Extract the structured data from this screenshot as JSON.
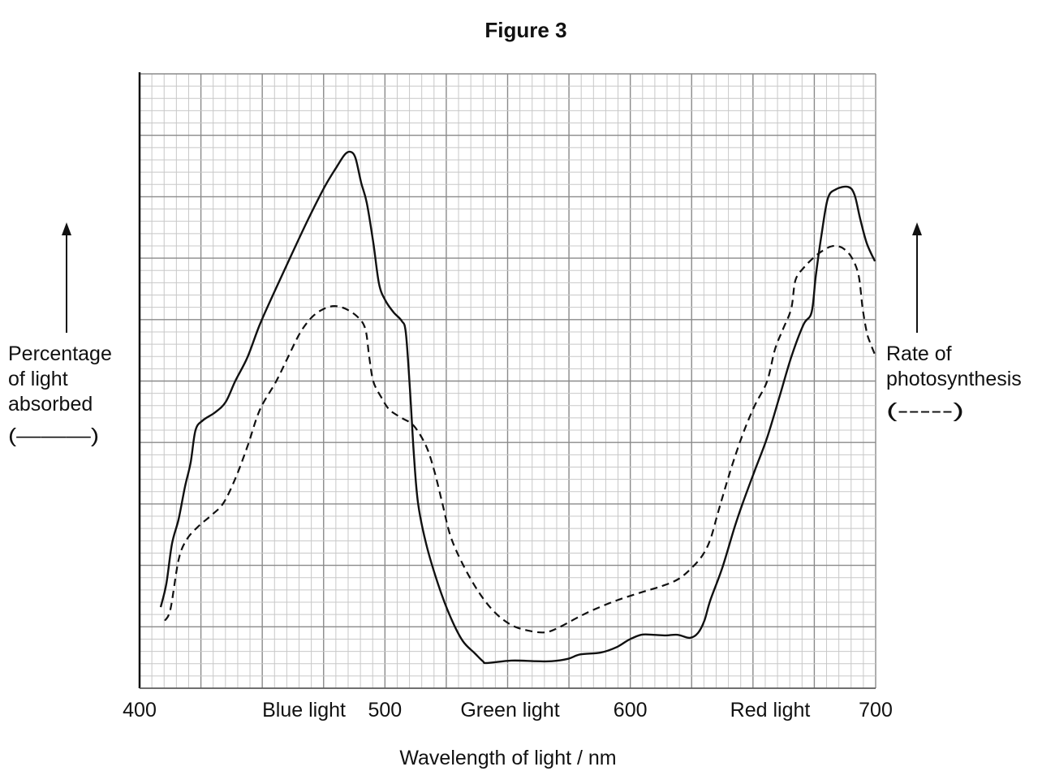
{
  "chart_data": {
    "type": "line",
    "title": "Figure 3",
    "xlabel": "Wavelength of light / nm",
    "xlim": [
      400,
      700
    ],
    "x_ticks": [
      "400",
      "500",
      "600",
      "700"
    ],
    "x_tick_values": [
      400,
      500,
      600,
      700
    ],
    "x_region_labels": [
      {
        "label": "Blue light",
        "x": 467
      },
      {
        "label": "Green light",
        "x": 551
      },
      {
        "label": "Red light",
        "x": 657
      }
    ],
    "ylim": [
      0,
      10
    ],
    "y_units": "grid divisions (no y values printed)",
    "grid": true,
    "left_axis_label": [
      "Percentage",
      "of light",
      "absorbed",
      "(———)"
    ],
    "right_axis_label": [
      "Rate of",
      "photosynthesis",
      "(-----)"
    ],
    "series": [
      {
        "name": "Percentage of light absorbed",
        "style": "solid",
        "color": "#111111",
        "points": [
          [
            408.6,
            1.32
          ],
          [
            410.9,
            1.7
          ],
          [
            413.2,
            2.35
          ],
          [
            415.9,
            2.75
          ],
          [
            418.5,
            3.28
          ],
          [
            420.8,
            3.67
          ],
          [
            422.8,
            4.2
          ],
          [
            425.8,
            4.36
          ],
          [
            430.8,
            4.49
          ],
          [
            435.1,
            4.66
          ],
          [
            439.0,
            5.0
          ],
          [
            444.0,
            5.39
          ],
          [
            449.0,
            5.92
          ],
          [
            455.6,
            6.51
          ],
          [
            462.2,
            7.08
          ],
          [
            468.8,
            7.64
          ],
          [
            475.4,
            8.16
          ],
          [
            480.4,
            8.49
          ],
          [
            483.7,
            8.69
          ],
          [
            486.0,
            8.73
          ],
          [
            488.0,
            8.63
          ],
          [
            490.3,
            8.23
          ],
          [
            492.6,
            7.9
          ],
          [
            495.3,
            7.24
          ],
          [
            497.6,
            6.58
          ],
          [
            500.2,
            6.31
          ],
          [
            503.5,
            6.12
          ],
          [
            506.8,
            5.98
          ],
          [
            508.5,
            5.79
          ],
          [
            510.2,
            4.86
          ],
          [
            511.8,
            3.8
          ],
          [
            513.5,
            3.01
          ],
          [
            516.8,
            2.35
          ],
          [
            521.7,
            1.69
          ],
          [
            526.7,
            1.16
          ],
          [
            531.7,
            0.77
          ],
          [
            536.6,
            0.57
          ],
          [
            539.9,
            0.44
          ],
          [
            541.6,
            0.41
          ],
          [
            551.5,
            0.45
          ],
          [
            561.4,
            0.44
          ],
          [
            568.0,
            0.44
          ],
          [
            574.7,
            0.48
          ],
          [
            579.6,
            0.55
          ],
          [
            587.9,
            0.58
          ],
          [
            594.5,
            0.67
          ],
          [
            599.5,
            0.79
          ],
          [
            604.4,
            0.87
          ],
          [
            609.4,
            0.87
          ],
          [
            614.4,
            0.86
          ],
          [
            619.3,
            0.87
          ],
          [
            624.3,
            0.82
          ],
          [
            627.6,
            0.9
          ],
          [
            630.2,
            1.1
          ],
          [
            632.6,
            1.43
          ],
          [
            637.5,
            1.96
          ],
          [
            642.5,
            2.62
          ],
          [
            645.8,
            3.01
          ],
          [
            650.7,
            3.54
          ],
          [
            655.7,
            4.07
          ],
          [
            660.7,
            4.73
          ],
          [
            665.6,
            5.39
          ],
          [
            670.6,
            5.92
          ],
          [
            673.9,
            6.12
          ],
          [
            675.6,
            6.71
          ],
          [
            677.9,
            7.37
          ],
          [
            680.5,
            7.97
          ],
          [
            683.8,
            8.12
          ],
          [
            688.8,
            8.16
          ],
          [
            691.4,
            8.03
          ],
          [
            693.7,
            7.64
          ],
          [
            696.4,
            7.24
          ],
          [
            699.7,
            6.95
          ]
        ]
      },
      {
        "name": "Rate of photosynthesis",
        "style": "dashed",
        "color": "#111111",
        "points": [
          [
            410.3,
            1.1
          ],
          [
            412.6,
            1.29
          ],
          [
            415.9,
            2.09
          ],
          [
            419.2,
            2.42
          ],
          [
            424.1,
            2.64
          ],
          [
            429.1,
            2.81
          ],
          [
            434.1,
            3.01
          ],
          [
            439.0,
            3.41
          ],
          [
            444.0,
            3.94
          ],
          [
            449.0,
            4.53
          ],
          [
            455.6,
            4.99
          ],
          [
            460.5,
            5.39
          ],
          [
            465.5,
            5.79
          ],
          [
            470.5,
            6.05
          ],
          [
            475.4,
            6.18
          ],
          [
            479.4,
            6.22
          ],
          [
            483.7,
            6.18
          ],
          [
            488.7,
            6.05
          ],
          [
            492.0,
            5.85
          ],
          [
            493.6,
            5.39
          ],
          [
            495.3,
            4.99
          ],
          [
            498.6,
            4.73
          ],
          [
            501.9,
            4.53
          ],
          [
            506.8,
            4.4
          ],
          [
            511.8,
            4.27
          ],
          [
            516.8,
            3.94
          ],
          [
            520.1,
            3.54
          ],
          [
            523.4,
            3.01
          ],
          [
            526.7,
            2.48
          ],
          [
            531.7,
            2.02
          ],
          [
            538.3,
            1.56
          ],
          [
            544.9,
            1.23
          ],
          [
            551.5,
            1.03
          ],
          [
            558.1,
            0.94
          ],
          [
            565.4,
            0.91
          ],
          [
            571.4,
            1.0
          ],
          [
            578.0,
            1.14
          ],
          [
            584.6,
            1.27
          ],
          [
            594.5,
            1.43
          ],
          [
            604.4,
            1.56
          ],
          [
            612.7,
            1.66
          ],
          [
            619.3,
            1.77
          ],
          [
            624.3,
            1.93
          ],
          [
            629.2,
            2.15
          ],
          [
            632.6,
            2.42
          ],
          [
            635.9,
            2.88
          ],
          [
            640.8,
            3.54
          ],
          [
            645.8,
            4.13
          ],
          [
            650.7,
            4.6
          ],
          [
            655.7,
            4.99
          ],
          [
            659.0,
            5.52
          ],
          [
            662.3,
            5.85
          ],
          [
            665.6,
            6.18
          ],
          [
            667.3,
            6.64
          ],
          [
            670.6,
            6.84
          ],
          [
            675.6,
            7.04
          ],
          [
            680.5,
            7.17
          ],
          [
            683.8,
            7.2
          ],
          [
            687.1,
            7.15
          ],
          [
            690.4,
            7.0
          ],
          [
            693.1,
            6.71
          ],
          [
            694.7,
            6.18
          ],
          [
            696.4,
            5.79
          ],
          [
            697.7,
            5.63
          ],
          [
            699.7,
            5.43
          ]
        ]
      }
    ]
  }
}
